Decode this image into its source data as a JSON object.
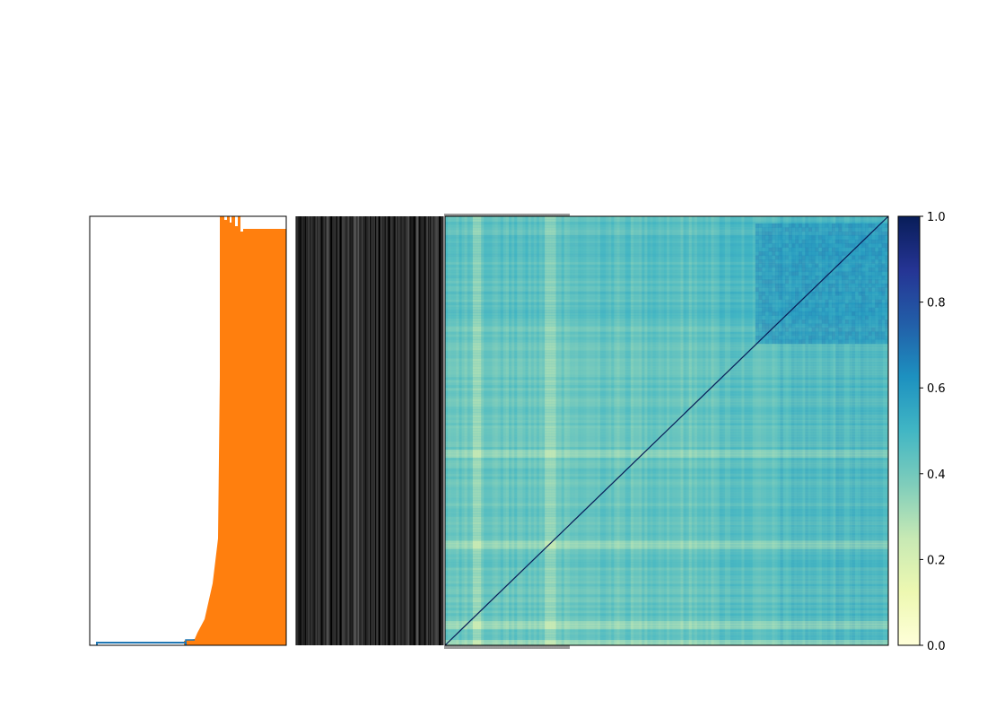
{
  "chart_data": [
    {
      "type": "dendrogram",
      "orientation": "left",
      "link_colors": [
        "#1f77b4",
        "#ff7f0e"
      ],
      "leaf_count": 300,
      "title": "",
      "xlabel": "",
      "ylabel": ""
    },
    {
      "type": "heatmap",
      "matrix": "symmetric",
      "size": 300,
      "diagonal_value": 1.0,
      "colormap": "YlGnBu",
      "zlim": [
        0,
        1
      ],
      "typical_value_range": [
        0.15,
        0.7
      ],
      "title": "",
      "xlabel": "",
      "ylabel": ""
    },
    {
      "type": "colorbar",
      "ticks": [
        0.0,
        0.2,
        0.4,
        0.6,
        0.8,
        1.0
      ],
      "tick_labels": [
        "0.0",
        "0.2",
        "0.4",
        "0.6",
        "0.8",
        "1.0"
      ],
      "range": [
        0,
        1
      ],
      "colormap": "YlGnBu"
    }
  ]
}
